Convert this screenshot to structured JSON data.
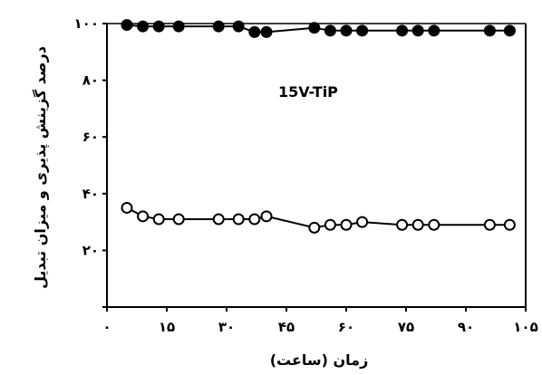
{
  "chart_data": {
    "type": "line",
    "title": "",
    "xlabel": "زمان (ساعت)",
    "ylabel": "درصد گزینش پذیری و میزان تبدیل",
    "annotation": "15V-TiP",
    "xlim": [
      0,
      105
    ],
    "ylim": [
      0,
      100
    ],
    "x_ticks": [
      {
        "value": 0,
        "label": "۰"
      },
      {
        "value": 15,
        "label": "۱۵"
      },
      {
        "value": 30,
        "label": "۳۰"
      },
      {
        "value": 45,
        "label": "۴۵"
      },
      {
        "value": 60,
        "label": "۶۰"
      },
      {
        "value": 75,
        "label": "۷۵"
      },
      {
        "value": 90,
        "label": "۹۰"
      },
      {
        "value": 105,
        "label": "۱۰۵"
      }
    ],
    "y_ticks": [
      {
        "value": 0,
        "label": ""
      },
      {
        "value": 20,
        "label": "۲۰"
      },
      {
        "value": 40,
        "label": "۴۰"
      },
      {
        "value": 60,
        "label": "۶۰"
      },
      {
        "value": 80,
        "label": "۸۰"
      },
      {
        "value": 100,
        "label": "۱۰۰"
      }
    ],
    "grid": false,
    "series": [
      {
        "marker": "filled-circle",
        "color": "#000000",
        "x": [
          5,
          9,
          13,
          18,
          28,
          33,
          37,
          40,
          52,
          56,
          60,
          64,
          74,
          78,
          82,
          96,
          101
        ],
        "y": [
          99.5,
          99,
          99,
          99,
          99,
          99,
          97,
          97,
          98.5,
          97.5,
          97.5,
          97.5,
          97.5,
          97.5,
          97.5,
          97.5,
          97.5
        ]
      },
      {
        "marker": "open-circle",
        "color": "#000000",
        "x": [
          5,
          9,
          13,
          18,
          28,
          33,
          37,
          40,
          52,
          56,
          60,
          64,
          74,
          78,
          82,
          96,
          101
        ],
        "y": [
          35,
          32,
          31,
          31,
          31,
          31,
          31,
          32,
          28,
          29,
          29,
          30,
          29,
          29,
          29,
          29,
          29
        ]
      }
    ]
  }
}
